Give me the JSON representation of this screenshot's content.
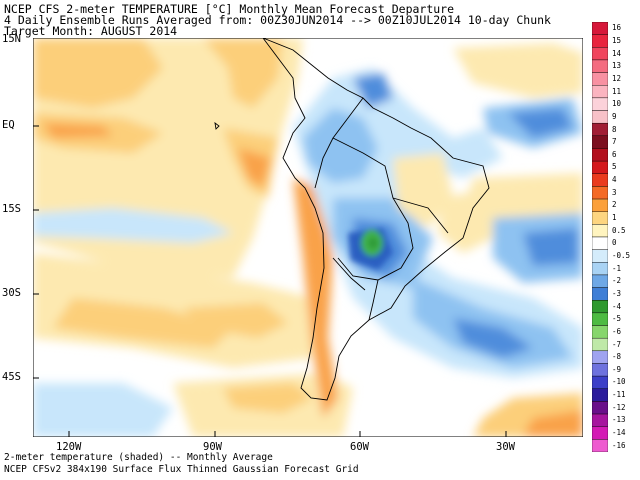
{
  "header": {
    "line1": "NCEP CFS 2-meter TEMPERATURE [°C] Monthly Mean Forecast Departure",
    "line2": "4 Daily Ensemble Runs Averaged from: 00Z30JUN2014 --> 00Z10JUL2014 10-day Chunk",
    "line3": "Target Month: AUGUST 2014"
  },
  "axes": {
    "lat_labels": [
      "15N",
      "EQ",
      "15S",
      "30S",
      "45S"
    ],
    "lon_labels": [
      "120W",
      "90W",
      "60W",
      "30W"
    ]
  },
  "footer": {
    "line1": "2-meter temperature (shaded) -- Monthly Average",
    "line2": "NCEP CFSv2 384x190 Surface Flux Thinned Gaussian Forecast Grid"
  },
  "colorbar": {
    "labels": [
      "16",
      "15",
      "14",
      "13",
      "12",
      "11",
      "10",
      "9",
      "8",
      "7",
      "6",
      "5",
      "4",
      "3",
      "2",
      "1",
      "0.5",
      "0",
      "-0.5",
      "-1",
      "-2",
      "-3",
      "-4",
      "-5",
      "-6",
      "-7",
      "-8",
      "-9",
      "-10",
      "-11",
      "-12",
      "-13",
      "-14",
      "-16"
    ],
    "colors": [
      "#d6183a",
      "#e8253f",
      "#f0465e",
      "#f46c80",
      "#f891a2",
      "#fbb4c0",
      "#fcd2da",
      "#f7c1c8",
      "#a11e35",
      "#7c0f1f",
      "#b3101e",
      "#d4181c",
      "#ea3b1e",
      "#f46a25",
      "#fba03a",
      "#fdd580",
      "#fff4bf",
      "#ffffff",
      "#d4ecfb",
      "#a9d3f4",
      "#6ea8e6",
      "#3f7fd6",
      "#2f9a2f",
      "#4dbb42",
      "#86d66c",
      "#bfe9a8",
      "#9fa3f0",
      "#6e72de",
      "#3c3fc8",
      "#2a1b9c",
      "#6a0f8a",
      "#a6159e",
      "#d31bb5",
      "#ee5ad0"
    ]
  },
  "colors": {
    "warm_light": "#fde9b0",
    "warm_mid": "#fccf7a",
    "warm_strong": "#f9a24a",
    "cool_light": "#c8e6fb",
    "cool_mid": "#8ec2f1",
    "cool_strong": "#4f8ddc",
    "cool_deep": "#2c5fc1",
    "green": "#3fb34c"
  }
}
